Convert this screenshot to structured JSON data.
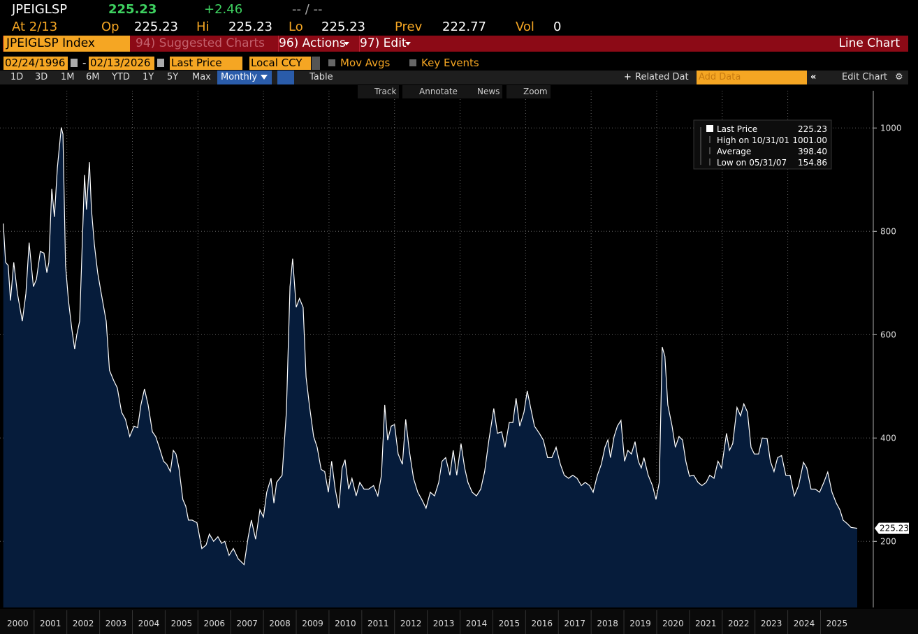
{
  "header": {
    "ticker": "JPEIGLSP",
    "price": "225.23",
    "change": "+2.46",
    "time": "-- / --",
    "at": "At 2/13",
    "open_label": "Op",
    "open": "225.23",
    "high_label": "Hi",
    "high": "225.23",
    "low_label": "Lo",
    "low": "225.23",
    "prev_label": "Prev",
    "prev": "222.77",
    "vol_label": "Vol",
    "vol": "0"
  },
  "toolbar": {
    "security": "JPEIGLSP Index",
    "suggested": "94) Suggested Charts",
    "actions": "96) Actions",
    "edit": "97) Edit",
    "chart_type": "Line Chart"
  },
  "controls": {
    "start_date": "02/24/1996",
    "dash": "-",
    "end_date": "02/13/2026",
    "field": "Last Price",
    "currency": "Local CCY",
    "mov_avgs": "Mov Avgs",
    "key_events": "Key Events"
  },
  "ranges": [
    "1D",
    "3D",
    "1M",
    "6M",
    "YTD",
    "1Y",
    "5Y",
    "Max"
  ],
  "period": "Monthly",
  "table": "Table",
  "related": "Related Dat",
  "add_data": "Add Data",
  "edit_chart": "Edit Chart",
  "chart_tools": [
    "Track",
    "Annotate",
    "News",
    "Zoom"
  ],
  "chart_data": {
    "type": "area",
    "grid": true,
    "legend": [
      {
        "label": "Last Price",
        "value": "225.23"
      },
      {
        "label": "High on 10/31/01",
        "value": "1001.00"
      },
      {
        "label": "Average",
        "value": "398.40"
      },
      {
        "label": "Low on 05/31/07",
        "value": "154.86"
      }
    ],
    "xlim": [
      1999.96,
      2026.61
    ],
    "xticks": [
      {
        "value": 2000.5,
        "label": "2000"
      },
      {
        "value": 2001.5,
        "label": "2001"
      },
      {
        "value": 2002.5,
        "label": "2002"
      },
      {
        "value": 2003.5,
        "label": "2003"
      },
      {
        "value": 2004.5,
        "label": "2004"
      },
      {
        "value": 2005.5,
        "label": "2005"
      },
      {
        "value": 2006.5,
        "label": "2006"
      },
      {
        "value": 2007.5,
        "label": "2007"
      },
      {
        "value": 2008.5,
        "label": "2008"
      },
      {
        "value": 2009.5,
        "label": "2009"
      },
      {
        "value": 2010.5,
        "label": "2010"
      },
      {
        "value": 2011.5,
        "label": "2011"
      },
      {
        "value": 2012.5,
        "label": "2012"
      },
      {
        "value": 2013.5,
        "label": "2013"
      },
      {
        "value": 2014.5,
        "label": "2014"
      },
      {
        "value": 2015.5,
        "label": "2015"
      },
      {
        "value": 2016.5,
        "label": "2016"
      },
      {
        "value": 2017.5,
        "label": "2017"
      },
      {
        "value": 2018.5,
        "label": "2018"
      },
      {
        "value": 2019.5,
        "label": "2019"
      },
      {
        "value": 2020.5,
        "label": "2020"
      },
      {
        "value": 2021.5,
        "label": "2021"
      },
      {
        "value": 2022.5,
        "label": "2022"
      },
      {
        "value": 2023.5,
        "label": "2023"
      },
      {
        "value": 2024.5,
        "label": "2024"
      },
      {
        "value": 2025.5,
        "label": "2025"
      }
    ],
    "ylim": [
      72,
      1072
    ],
    "yticks": [
      200,
      400,
      600,
      800,
      1000
    ],
    "x": [
      2000.06,
      2000.13,
      2000.21,
      2000.28,
      2000.38,
      2000.49,
      2000.64,
      2000.75,
      2000.85,
      2000.98,
      2001.07,
      2001.19,
      2001.3,
      2001.39,
      2001.45,
      2001.54,
      2001.62,
      2001.71,
      2001.83,
      2001.88,
      2001.96,
      2002.05,
      2002.15,
      2002.24,
      2002.3,
      2002.39,
      2002.47,
      2002.54,
      2002.6,
      2002.69,
      2002.75,
      2002.84,
      2002.94,
      2003.05,
      2003.2,
      2003.3,
      2003.43,
      2003.54,
      2003.67,
      2003.79,
      2003.92,
      2004.05,
      2004.16,
      2004.26,
      2004.37,
      2004.48,
      2004.61,
      2004.71,
      2004.82,
      2004.95,
      2005.05,
      2005.16,
      2005.25,
      2005.33,
      2005.42,
      2005.54,
      2005.63,
      2005.71,
      2005.82,
      2005.97,
      2006.12,
      2006.25,
      2006.35,
      2006.48,
      2006.61,
      2006.72,
      2006.82,
      2006.95,
      2007.08,
      2007.23,
      2007.41,
      2007.53,
      2007.63,
      2007.76,
      2007.89,
      2008.0,
      2008.1,
      2008.23,
      2008.32,
      2008.4,
      2008.57,
      2008.7,
      2008.81,
      2008.89,
      2009.0,
      2009.1,
      2009.21,
      2009.3,
      2009.4,
      2009.53,
      2009.64,
      2009.76,
      2009.87,
      2009.98,
      2010.08,
      2010.19,
      2010.3,
      2010.4,
      2010.49,
      2010.6,
      2010.7,
      2010.83,
      2010.94,
      2011.07,
      2011.21,
      2011.36,
      2011.49,
      2011.6,
      2011.7,
      2011.79,
      2011.9,
      2012.0,
      2012.11,
      2012.24,
      2012.34,
      2012.45,
      2012.58,
      2012.71,
      2012.83,
      2012.96,
      2013.09,
      2013.22,
      2013.35,
      2013.45,
      2013.56,
      2013.69,
      2013.79,
      2013.9,
      2014.03,
      2014.14,
      2014.24,
      2014.37,
      2014.5,
      2014.63,
      2014.75,
      2014.88,
      2015.03,
      2015.14,
      2015.27,
      2015.37,
      2015.5,
      2015.61,
      2015.71,
      2015.82,
      2015.95,
      2016.05,
      2016.16,
      2016.27,
      2016.42,
      2016.54,
      2016.67,
      2016.8,
      2016.93,
      2017.06,
      2017.18,
      2017.31,
      2017.44,
      2017.57,
      2017.7,
      2017.82,
      2017.95,
      2018.06,
      2018.19,
      2018.31,
      2018.42,
      2018.51,
      2018.59,
      2018.7,
      2018.8,
      2018.91,
      2019.02,
      2019.12,
      2019.23,
      2019.34,
      2019.44,
      2019.53,
      2019.61,
      2019.74,
      2019.87,
      2019.98,
      2020.08,
      2020.17,
      2020.25,
      2020.34,
      2020.47,
      2020.57,
      2020.68,
      2020.79,
      2020.89,
      2021.0,
      2021.13,
      2021.26,
      2021.38,
      2021.51,
      2021.62,
      2021.75,
      2021.87,
      2021.98,
      2022.13,
      2022.22,
      2022.32,
      2022.45,
      2022.56,
      2022.66,
      2022.77,
      2022.88,
      2022.98,
      2023.11,
      2023.22,
      2023.37,
      2023.47,
      2023.58,
      2023.69,
      2023.81,
      2023.94,
      2024.07,
      2024.2,
      2024.33,
      2024.48,
      2024.58,
      2024.71,
      2024.84,
      2024.97,
      2025.1,
      2025.22,
      2025.35,
      2025.48,
      2025.59,
      2025.69,
      2025.82,
      2025.93,
      2026.12
    ],
    "series": [
      {
        "name": "Last Price",
        "color": "#ffffff",
        "fill": "#061c3b",
        "values": [
          815,
          740,
          734,
          666,
          740,
          680,
          626,
          680,
          778,
          693,
          707,
          761,
          758,
          720,
          740,
          882,
          828,
          923,
          1001,
          988,
          734,
          666,
          612,
          572,
          599,
          626,
          774,
          909,
          842,
          934,
          842,
          774,
          720,
          680,
          626,
          531,
          511,
          497,
          450,
          436,
          403,
          423,
          420,
          464,
          495,
          464,
          412,
          403,
          382,
          355,
          349,
          335,
          376,
          369,
          342,
          281,
          268,
          241,
          241,
          236,
          186,
          193,
          214,
          200,
          209,
          196,
          200,
          173,
          186,
          166,
          155,
          207,
          241,
          204,
          261,
          247,
          295,
          322,
          274,
          314,
          328,
          450,
          693,
          747,
          653,
          670,
          653,
          518,
          464,
          403,
          382,
          339,
          335,
          295,
          355,
          301,
          264,
          342,
          358,
          301,
          322,
          288,
          314,
          301,
          301,
          308,
          288,
          328,
          464,
          396,
          423,
          426,
          369,
          349,
          436,
          376,
          322,
          295,
          281,
          264,
          295,
          288,
          314,
          355,
          362,
          328,
          376,
          328,
          389,
          342,
          314,
          295,
          288,
          301,
          335,
          396,
          457,
          409,
          412,
          382,
          430,
          430,
          477,
          423,
          450,
          491,
          457,
          423,
          409,
          396,
          362,
          362,
          382,
          349,
          328,
          322,
          328,
          322,
          308,
          314,
          308,
          295,
          328,
          349,
          382,
          396,
          362,
          403,
          423,
          434,
          355,
          376,
          369,
          393,
          355,
          342,
          362,
          328,
          308,
          281,
          314,
          576,
          558,
          464,
          423,
          382,
          403,
          396,
          355,
          326,
          328,
          314,
          308,
          314,
          328,
          322,
          355,
          342,
          409,
          376,
          389,
          459,
          443,
          466,
          450,
          382,
          369,
          369,
          400,
          399,
          355,
          335,
          362,
          366,
          328,
          328,
          288,
          308,
          353,
          342,
          301,
          301,
          295,
          314,
          334,
          295,
          274,
          261,
          241,
          234,
          227,
          225.23
        ]
      }
    ]
  }
}
